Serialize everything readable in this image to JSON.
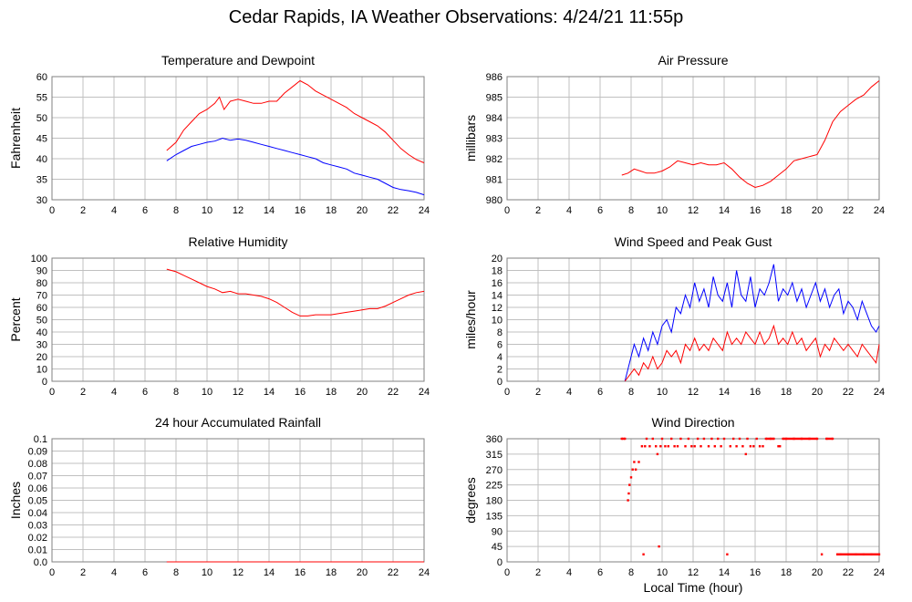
{
  "page": {
    "title": "Cedar Rapids, IA Weather Observations: 4/24/21 11:55p"
  },
  "global_xlabel": "Local Time (hour)",
  "chart_data": [
    {
      "id": "temp",
      "type": "line",
      "title": "Temperature and Dewpoint",
      "ylabel": "Fahrenheit",
      "xlabel": "",
      "xlim": [
        0,
        24
      ],
      "ylim": [
        30,
        60
      ],
      "xticks": [
        0,
        2,
        4,
        6,
        8,
        10,
        12,
        14,
        16,
        18,
        20,
        22,
        24
      ],
      "yticks": [
        30,
        35,
        40,
        45,
        50,
        55,
        60
      ],
      "grid": true,
      "series": [
        {
          "color": "#ff0000",
          "x": [
            7.4,
            8,
            8.5,
            9,
            9.5,
            10,
            10.5,
            10.8,
            11.1,
            11.5,
            12,
            12.5,
            13,
            13.5,
            14,
            14.5,
            15,
            15.5,
            16,
            16.5,
            17,
            17.5,
            18,
            18.5,
            19,
            19.5,
            20,
            20.5,
            21,
            21.5,
            22,
            22.5,
            23,
            23.5,
            24
          ],
          "y": [
            42,
            44,
            47,
            49,
            51,
            52,
            53.5,
            55,
            52,
            54,
            54.5,
            54,
            53.5,
            53.5,
            54,
            54,
            56,
            57.5,
            59,
            58,
            56.5,
            55.5,
            54.5,
            53.5,
            52.5,
            51,
            50,
            49,
            48,
            46.5,
            44.5,
            42.5,
            41,
            39.8,
            39
          ]
        },
        {
          "color": "#0000ff",
          "x": [
            7.4,
            8,
            8.5,
            9,
            9.5,
            10,
            10.5,
            11,
            11.5,
            12,
            12.5,
            13,
            13.5,
            14,
            14.5,
            15,
            15.5,
            16,
            16.5,
            17,
            17.5,
            18,
            18.5,
            19,
            19.5,
            20,
            20.5,
            21,
            21.5,
            22,
            22.5,
            23,
            23.5,
            24
          ],
          "y": [
            39.5,
            41,
            42,
            43,
            43.5,
            44,
            44.3,
            45,
            44.5,
            44.8,
            44.5,
            44,
            43.5,
            43,
            42.5,
            42,
            41.5,
            41,
            40.5,
            40,
            39,
            38.5,
            38,
            37.5,
            36.5,
            36,
            35.5,
            35,
            34,
            33,
            32.5,
            32.2,
            31.8,
            31.2
          ]
        }
      ]
    },
    {
      "id": "pres",
      "type": "line",
      "title": "Air Pressure",
      "ylabel": "millibars",
      "xlabel": "",
      "xlim": [
        0,
        24
      ],
      "ylim": [
        980,
        986
      ],
      "xticks": [
        0,
        2,
        4,
        6,
        8,
        10,
        12,
        14,
        16,
        18,
        20,
        22,
        24
      ],
      "yticks": [
        980,
        981,
        982,
        983,
        984,
        985,
        986
      ],
      "grid": true,
      "series": [
        {
          "color": "#ff0000",
          "x": [
            7.4,
            7.8,
            8.2,
            8.6,
            9,
            9.5,
            10,
            10.5,
            11,
            11.5,
            12,
            12.5,
            13,
            13.5,
            14,
            14.5,
            15,
            15.5,
            16,
            16.5,
            17,
            17.5,
            18,
            18.5,
            19,
            19.5,
            20,
            20.5,
            21,
            21.5,
            22,
            22.5,
            23,
            23.5,
            24
          ],
          "y": [
            981.2,
            981.3,
            981.5,
            981.4,
            981.3,
            981.3,
            981.4,
            981.6,
            981.9,
            981.8,
            981.7,
            981.8,
            981.7,
            981.7,
            981.8,
            981.5,
            981.1,
            980.8,
            980.6,
            980.7,
            980.9,
            981.2,
            981.5,
            981.9,
            982.0,
            982.1,
            982.2,
            982.9,
            983.8,
            984.3,
            984.6,
            984.9,
            985.1,
            985.5,
            985.8
          ]
        }
      ]
    },
    {
      "id": "rh",
      "type": "line",
      "title": "Relative Humidity",
      "ylabel": "Percent",
      "xlabel": "",
      "xlim": [
        0,
        24
      ],
      "ylim": [
        0,
        100
      ],
      "xticks": [
        0,
        2,
        4,
        6,
        8,
        10,
        12,
        14,
        16,
        18,
        20,
        22,
        24
      ],
      "yticks": [
        0,
        10,
        20,
        30,
        40,
        50,
        60,
        70,
        80,
        90,
        100
      ],
      "grid": true,
      "series": [
        {
          "color": "#ff0000",
          "x": [
            7.4,
            8,
            8.5,
            9,
            9.5,
            10,
            10.5,
            11,
            11.5,
            12,
            12.5,
            13,
            13.5,
            14,
            14.5,
            15,
            15.5,
            16,
            16.5,
            17,
            17.5,
            18,
            18.5,
            19,
            19.5,
            20,
            20.5,
            21,
            21.5,
            22,
            22.5,
            23,
            23.5,
            24
          ],
          "y": [
            91,
            89,
            86,
            83,
            80,
            77,
            75,
            72,
            73,
            71,
            71,
            70,
            69,
            67,
            64,
            60,
            56,
            53,
            53,
            54,
            54,
            54,
            55,
            56,
            57,
            58,
            59,
            59,
            61,
            64,
            67,
            70,
            72,
            73
          ]
        }
      ]
    },
    {
      "id": "wind",
      "type": "line",
      "title": "Wind Speed and Peak Gust",
      "ylabel": "miles/hour",
      "xlabel": "",
      "xlim": [
        0,
        24
      ],
      "ylim": [
        0,
        20
      ],
      "xticks": [
        0,
        2,
        4,
        6,
        8,
        10,
        12,
        14,
        16,
        18,
        20,
        22,
        24
      ],
      "yticks": [
        0,
        2,
        4,
        6,
        8,
        10,
        12,
        14,
        16,
        18,
        20
      ],
      "grid": true,
      "series": [
        {
          "color": "#0000ff",
          "x": [
            7.6,
            7.9,
            8.2,
            8.5,
            8.8,
            9.1,
            9.4,
            9.7,
            10,
            10.3,
            10.6,
            10.9,
            11.2,
            11.5,
            11.8,
            12.1,
            12.4,
            12.7,
            13,
            13.3,
            13.6,
            13.9,
            14.2,
            14.5,
            14.8,
            15.1,
            15.4,
            15.7,
            16,
            16.3,
            16.6,
            16.9,
            17.2,
            17.5,
            17.8,
            18.1,
            18.4,
            18.7,
            19,
            19.3,
            19.6,
            19.9,
            20.2,
            20.5,
            20.8,
            21.1,
            21.4,
            21.7,
            22,
            22.3,
            22.6,
            22.9,
            23.2,
            23.5,
            23.8,
            24
          ],
          "y": [
            0,
            3,
            6,
            4,
            7,
            5,
            8,
            6,
            9,
            10,
            8,
            12,
            11,
            14,
            12,
            16,
            13,
            15,
            12,
            17,
            14,
            13,
            16,
            12,
            18,
            14,
            13,
            17,
            12,
            15,
            14,
            16,
            19,
            13,
            15,
            14,
            16,
            13,
            15,
            12,
            14,
            16,
            13,
            15,
            12,
            14,
            15,
            11,
            13,
            12,
            10,
            13,
            11,
            9,
            8,
            9
          ]
        },
        {
          "color": "#ff0000",
          "x": [
            7.6,
            7.9,
            8.2,
            8.5,
            8.8,
            9.1,
            9.4,
            9.7,
            10,
            10.3,
            10.6,
            10.9,
            11.2,
            11.5,
            11.8,
            12.1,
            12.4,
            12.7,
            13,
            13.3,
            13.6,
            13.9,
            14.2,
            14.5,
            14.8,
            15.1,
            15.4,
            15.7,
            16,
            16.3,
            16.6,
            16.9,
            17.2,
            17.5,
            17.8,
            18.1,
            18.4,
            18.7,
            19,
            19.3,
            19.6,
            19.9,
            20.2,
            20.5,
            20.8,
            21.1,
            21.4,
            21.7,
            22,
            22.3,
            22.6,
            22.9,
            23.2,
            23.5,
            23.8,
            24
          ],
          "y": [
            0,
            1,
            2,
            1,
            3,
            2,
            4,
            2,
            3,
            5,
            4,
            5,
            3,
            6,
            5,
            7,
            5,
            6,
            5,
            7,
            6,
            5,
            8,
            6,
            7,
            6,
            8,
            7,
            6,
            8,
            6,
            7,
            9,
            6,
            7,
            6,
            8,
            6,
            7,
            5,
            6,
            7,
            4,
            6,
            5,
            7,
            6,
            5,
            6,
            5,
            4,
            6,
            5,
            4,
            3,
            6
          ]
        }
      ]
    },
    {
      "id": "rain",
      "type": "line",
      "title": "24 hour Accumulated Rainfall",
      "ylabel": "Inches",
      "xlabel": "",
      "xlim": [
        0,
        24
      ],
      "ylim": [
        0,
        0.1
      ],
      "xticks": [
        0,
        2,
        4,
        6,
        8,
        10,
        12,
        14,
        16,
        18,
        20,
        22,
        24
      ],
      "yticks": [
        "0.0",
        "0.01",
        "0.02",
        "0.03",
        "0.04",
        "0.05",
        "0.06",
        "0.07",
        "0.08",
        "0.09",
        "0.1"
      ],
      "grid": true,
      "series": [
        {
          "color": "#0000ff",
          "x": [
            7.4,
            24
          ],
          "y": [
            0,
            0
          ]
        },
        {
          "color": "#ff0000",
          "x": [
            7.4,
            24
          ],
          "y": [
            0,
            0
          ]
        }
      ]
    },
    {
      "id": "dir",
      "type": "scatter",
      "title": "Wind Direction",
      "ylabel": "degrees",
      "xlabel": "Local Time (hour)",
      "xlim": [
        0,
        24
      ],
      "ylim": [
        0,
        360
      ],
      "xticks": [
        0,
        2,
        4,
        6,
        8,
        10,
        12,
        14,
        16,
        18,
        20,
        22,
        24
      ],
      "yticks": [
        0,
        45,
        90,
        135,
        180,
        225,
        270,
        315,
        360
      ],
      "grid": true,
      "series": [
        {
          "color": "#ff0000",
          "x": [
            7.4,
            7.6,
            7.8,
            7.85,
            7.9,
            8.0,
            8.1,
            8.2,
            8.3,
            8.5,
            8.7,
            8.8,
            8.9,
            9.0,
            9.2,
            9.4,
            9.6,
            9.7,
            9.8,
            9.9,
            10.0,
            10.2,
            10.4,
            10.6,
            10.8,
            11.0,
            11.2,
            11.5,
            11.7,
            11.9,
            12.1,
            12.3,
            12.5,
            12.7,
            13.0,
            13.2,
            13.4,
            13.6,
            13.8,
            14.0,
            14.2,
            14.4,
            14.6,
            14.8,
            15.0,
            15.2,
            15.4,
            15.5,
            15.7,
            15.9,
            16.1,
            16.3,
            16.5,
            16.7,
            17.0,
            17.2,
            17.5,
            17.6,
            17.8,
            18.0,
            18.5,
            19.0,
            19.5,
            20.0,
            20.3,
            20.6,
            21.0,
            21.3,
            21.5,
            22.0,
            22.5,
            23.0,
            23.5,
            24.0
          ],
          "y": [
            360,
            360,
            180,
            200,
            225,
            247,
            270,
            292,
            270,
            292,
            338,
            22,
            338,
            360,
            338,
            360,
            338,
            315,
            45,
            338,
            360,
            338,
            338,
            360,
            338,
            338,
            360,
            338,
            360,
            338,
            338,
            360,
            338,
            360,
            338,
            360,
            338,
            360,
            338,
            360,
            22,
            338,
            360,
            338,
            360,
            338,
            315,
            360,
            338,
            338,
            360,
            338,
            338,
            360,
            360,
            360,
            338,
            338,
            360,
            360,
            360,
            360,
            360,
            360,
            22,
            360,
            360,
            22,
            22,
            22,
            22,
            22,
            22,
            22
          ]
        }
      ]
    }
  ]
}
